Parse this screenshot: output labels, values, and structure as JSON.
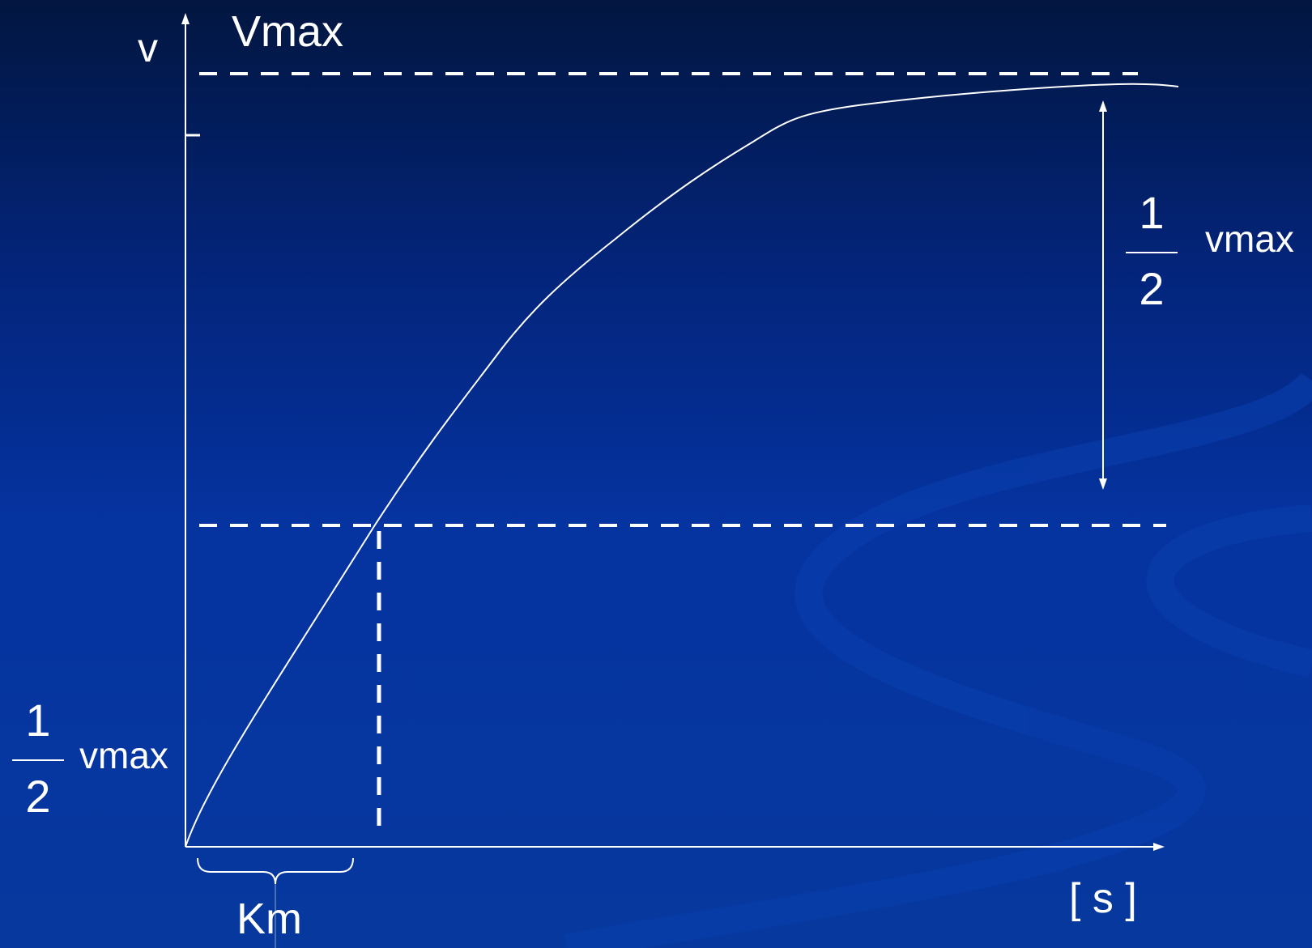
{
  "labels": {
    "y_axis": "v",
    "vmax_top": "Vmax",
    "half_vmax_right": {
      "numerator": "1",
      "denominator": "2",
      "text": "vmax"
    },
    "half_vmax_left": {
      "numerator": "1",
      "denominator": "2",
      "text": "vmax"
    },
    "x_axis": "[ s ]",
    "km": "Km"
  },
  "colors": {
    "background_top": "#021640",
    "background_bottom": "#06389e",
    "lines": "#ffffff"
  }
}
